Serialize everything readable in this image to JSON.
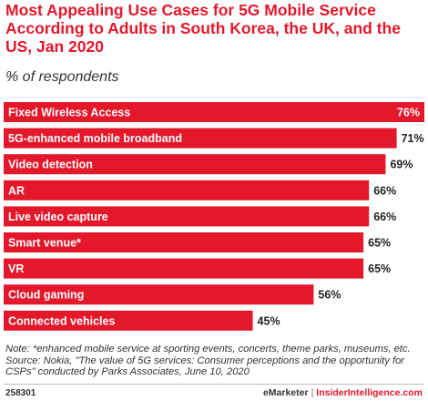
{
  "header": {
    "title": "Most Appealing Use Cases for 5G Mobile Service According to Adults in South Korea, the UK, and the US, Jan 2020",
    "subtitle": "% of respondents"
  },
  "footer": {
    "note": "Note: *enhanced mobile service at sporting events, concerts, theme parks, museums, etc.",
    "source": "Source: Nokia, \"The value of 5G services: Consumer perceptions and the opportunity for CSPs\" conducted by Parks Associates, June 10, 2020",
    "chart_id": "258301",
    "brand_emarketer": "eMarketer",
    "brand_separator": "|",
    "brand_insider": "InsiderIntelligence.com"
  },
  "colors": {
    "accent": "#e4182b",
    "bar": "#e4182b",
    "label_inside": "#ffffff",
    "value_outside": "#222222"
  },
  "chart_data": {
    "type": "bar",
    "orientation": "horizontal",
    "categories": [
      "Fixed Wireless Access",
      "5G-enhanced mobile broadband",
      "Video detection",
      "AR",
      "Live video capture",
      "Smart venue*",
      "VR",
      "Cloud gaming",
      "Connected vehicles"
    ],
    "values": [
      76,
      71,
      69,
      66,
      66,
      65,
      65,
      56,
      45
    ],
    "value_suffix": "%",
    "xlim": [
      0,
      76
    ],
    "grid": false,
    "legend": "none"
  }
}
